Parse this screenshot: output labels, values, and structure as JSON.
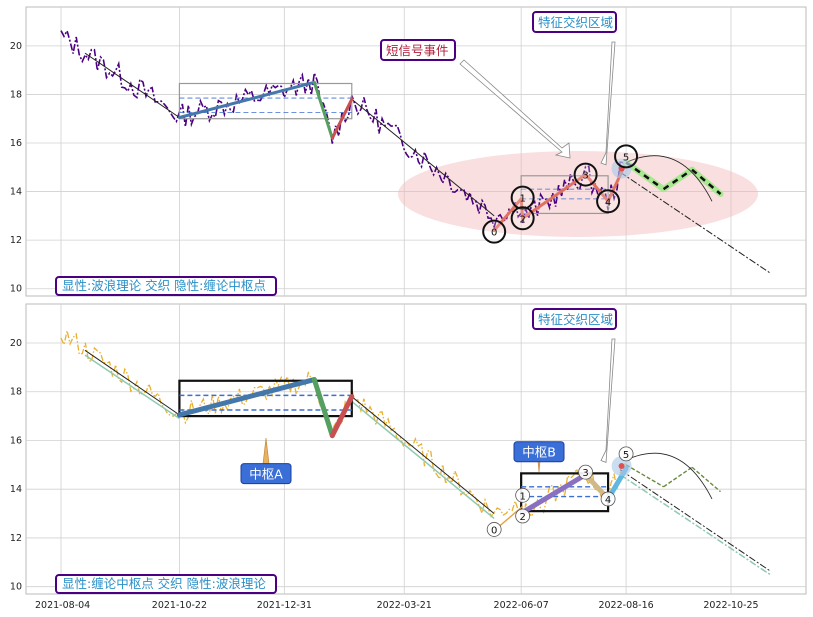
{
  "chart_data": {
    "type": "line",
    "x_ticks": [
      "2021-08-04",
      "2021-10-22",
      "2021-12-31",
      "2022-03-21",
      "2022-06-07",
      "2022-08-16",
      "2022-10-25"
    ],
    "y_ticks": [
      10,
      12,
      14,
      16,
      18,
      20
    ],
    "ylim": [
      9.7,
      21.6
    ],
    "panels": [
      {
        "id": "top",
        "label": "显性:波浪理论 交织 隐性:缠论中枢点",
        "label_color": "#2a8fc7",
        "border_color": "#4b0082",
        "price_color": "#4b0082",
        "annotations": [
          {
            "text": "特征交织区域",
            "color": "#2a8fc7"
          },
          {
            "text": "短信号事件",
            "color": "#b0203a"
          }
        ],
        "wave_points": [
          "0",
          "1",
          "2",
          "3",
          "4",
          "5"
        ]
      },
      {
        "id": "bottom",
        "label": "显性:缠论中枢点 交织 隐性:波浪理论",
        "label_color": "#2a8fc7",
        "border_color": "#4b0082",
        "price_color": "#e8b030",
        "annotations": [
          {
            "text": "特征交织区域",
            "color": "#2a8fc7"
          },
          {
            "text": "中枢A",
            "color": "#ffffff"
          },
          {
            "text": "中枢B",
            "color": "#ffffff"
          }
        ],
        "wave_points": [
          "0",
          "1",
          "2",
          "3",
          "4",
          "5"
        ]
      }
    ],
    "key_points": [
      {
        "date": "2021-08-04",
        "value": 20.4
      },
      {
        "date": "2021-10-22",
        "value": 17.1
      },
      {
        "date": "2022-01-20",
        "value": 18.5
      },
      {
        "date": "2022-02-01",
        "value": 16.2
      },
      {
        "date": "2022-02-14",
        "value": 17.8
      },
      {
        "date": "2022-05-20",
        "value": 13.0
      },
      {
        "date": "2022-06-07",
        "value": 13.5
      },
      {
        "date": "2022-06-08",
        "value": 12.9
      },
      {
        "date": "2022-07-20",
        "value": 14.7
      },
      {
        "date": "2022-08-04",
        "value": 13.6
      },
      {
        "date": "2022-08-16",
        "value": 15.3
      },
      {
        "date": "2022-11-25",
        "value": 10.6
      }
    ]
  }
}
